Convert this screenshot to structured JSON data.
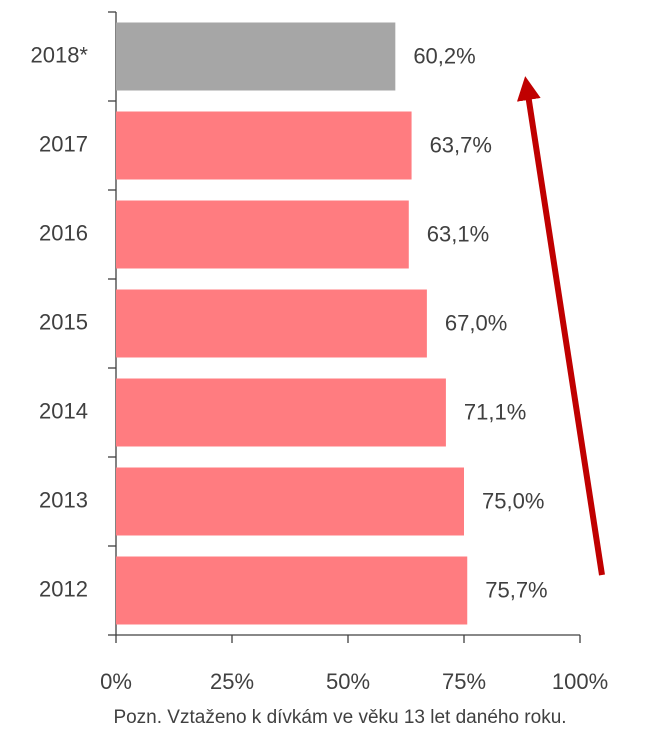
{
  "chart_data": {
    "type": "bar",
    "orientation": "horizontal",
    "categories": [
      "2018*",
      "2017",
      "2016",
      "2015",
      "2014",
      "2013",
      "2012"
    ],
    "values": [
      60.2,
      63.7,
      63.1,
      67.0,
      71.1,
      75.0,
      75.7
    ],
    "value_labels": [
      "60,2%",
      "63,7%",
      "63,1%",
      "67,0%",
      "71,1%",
      "75,0%",
      "75,7%"
    ],
    "colors": [
      "#a6a6a6",
      "#ff7c80",
      "#ff7c80",
      "#ff7c80",
      "#ff7c80",
      "#ff7c80",
      "#ff7c80"
    ],
    "xlim": [
      0,
      100
    ],
    "xticks": [
      {
        "value": 0,
        "label": "0%"
      },
      {
        "value": 25,
        "label": "25%"
      },
      {
        "value": 50,
        "label": "50%"
      },
      {
        "value": 75,
        "label": "75%"
      },
      {
        "value": 100,
        "label": "100%"
      }
    ],
    "grid": false,
    "note": "Pozn. Vztaženo k dívkám ve věku 13 let daného roku."
  }
}
